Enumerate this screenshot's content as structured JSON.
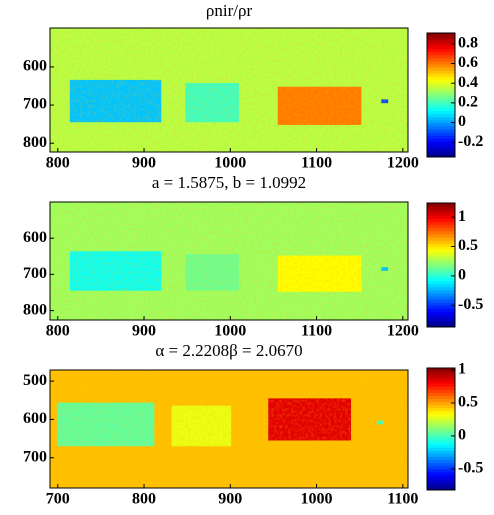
{
  "chart_data": [
    {
      "type": "heatmap",
      "title": "ρnir/ρr",
      "xlim": [
        791,
        1206
      ],
      "xticks": [
        800,
        900,
        1000,
        1100,
        1200
      ],
      "ylim": [
        498,
        823
      ],
      "yticks": [
        600,
        700,
        800
      ],
      "background": 0.35,
      "regions": [
        {
          "x": [
            814,
            920
          ],
          "y": [
            634,
            745
          ],
          "value": 0.05
        },
        {
          "x": [
            948,
            1010
          ],
          "y": [
            642,
            745
          ],
          "value": 0.2
        },
        {
          "x": [
            1055,
            1152
          ],
          "y": [
            652,
            752
          ],
          "value": 0.6
        },
        {
          "x": [
            1175,
            1183
          ],
          "y": [
            685,
            695
          ],
          "value": -0.1
        }
      ],
      "clim": [
        -0.35,
        0.91
      ],
      "cticks": [
        -0.2,
        0,
        0.2,
        0.4,
        0.6,
        0.8
      ]
    },
    {
      "type": "heatmap",
      "title": "a = 1.5875, b = 1.0992",
      "xlim": [
        791,
        1206
      ],
      "xticks": [
        800,
        900,
        1000,
        1100,
        1200
      ],
      "ylim": [
        500,
        826
      ],
      "yticks": [
        600,
        700,
        800
      ],
      "background": 0.25,
      "regions": [
        {
          "x": [
            814,
            920
          ],
          "y": [
            636,
            745
          ],
          "value": -0.05
        },
        {
          "x": [
            948,
            1010
          ],
          "y": [
            644,
            745
          ],
          "value": 0.15
        },
        {
          "x": [
            1055,
            1152
          ],
          "y": [
            648,
            748
          ],
          "value": 0.45
        },
        {
          "x": [
            1175,
            1183
          ],
          "y": [
            680,
            690
          ],
          "value": -0.2
        }
      ],
      "clim": [
        -0.87,
        1.24
      ],
      "cticks": [
        -0.5,
        0,
        0.5,
        1
      ]
    },
    {
      "type": "heatmap",
      "title": "α = 2.2208β = 2.0670",
      "xlim": [
        691,
        1106
      ],
      "xticks": [
        700,
        800,
        900,
        1000,
        1100
      ],
      "ylim": [
        471,
        779
      ],
      "yticks": [
        500,
        600,
        700
      ],
      "background": 0.45,
      "regions": [
        {
          "x": [
            699,
            812
          ],
          "y": [
            556,
            670
          ],
          "value": 0.05
        },
        {
          "x": [
            832,
            901
          ],
          "y": [
            564,
            670
          ],
          "value": 0.3
        },
        {
          "x": [
            944,
            1040
          ],
          "y": [
            545,
            655
          ],
          "value": 0.85
        },
        {
          "x": [
            1070,
            1078
          ],
          "y": [
            603,
            613
          ],
          "value": 0.0
        }
      ],
      "clim": [
        -0.82,
        1.03
      ],
      "cticks": [
        -0.5,
        0,
        0.5,
        1
      ]
    }
  ]
}
